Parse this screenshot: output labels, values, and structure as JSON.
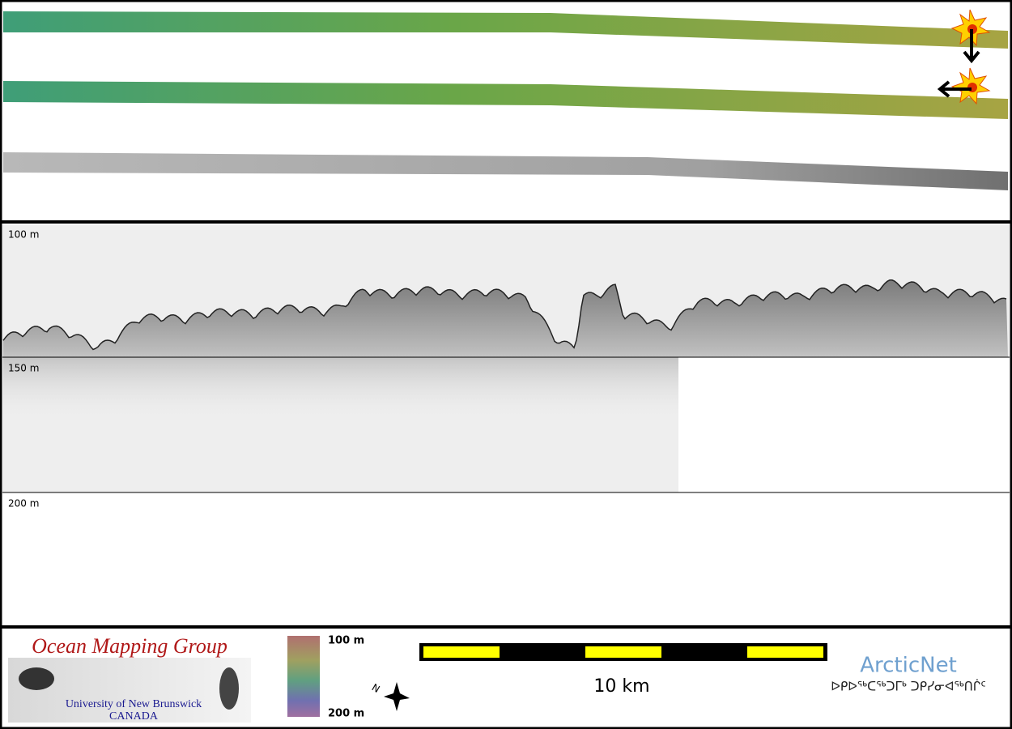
{
  "profile": {
    "depth_labels": [
      "100 m",
      "150 m",
      "200 m"
    ]
  },
  "footer": {
    "logo": {
      "title": "Ocean Mapping Group",
      "university": "University of New Brunswick",
      "country": "CANADA"
    },
    "colorbar": {
      "top_label": "100 m",
      "bottom_label": "200 m"
    },
    "scale_bar": {
      "label": "10 km"
    },
    "partner": {
      "name": "ArcticNet",
      "syllabics": "ᐅᑭᐅᖅᑕᖅᑐᒥᒃ ᑐᑭᓯᓂᐊᖅᑎᒌᑦ"
    }
  }
}
